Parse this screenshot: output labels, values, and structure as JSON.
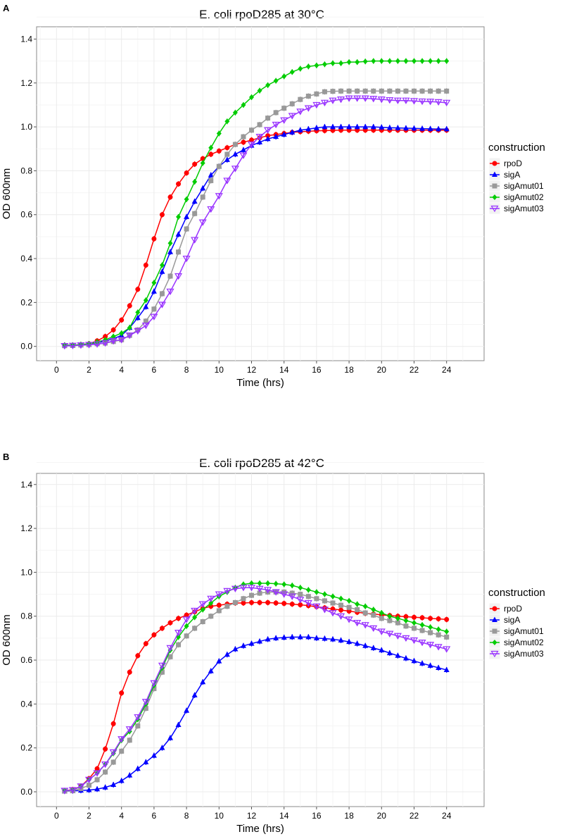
{
  "chart_data": [
    {
      "panel_label": "A",
      "type": "line",
      "title": "E. coli rpoD285 at 30°C",
      "xlabel": "Time (hrs)",
      "ylabel": "OD 600nm",
      "xlim": [
        -1,
        26
      ],
      "ylim": [
        -0.07,
        1.47
      ],
      "xticks": [
        "0",
        "2",
        "4",
        "6",
        "8",
        "10",
        "12",
        "14",
        "16",
        "18",
        "20",
        "22",
        "24"
      ],
      "yticks": [
        "0.0",
        "0.2",
        "0.4",
        "0.6",
        "0.8",
        "1.0",
        "1.2",
        "1.4"
      ],
      "grid": true,
      "legend_title": "construction",
      "legend_position": "right",
      "x_start": 0.5,
      "x_step": 0.5,
      "series": [
        {
          "name": "rpoD",
          "color": "#ff0000",
          "marker": "circle",
          "values": [
            0.005,
            0.005,
            0.008,
            0.012,
            0.025,
            0.045,
            0.075,
            0.12,
            0.185,
            0.26,
            0.37,
            0.49,
            0.6,
            0.68,
            0.74,
            0.79,
            0.83,
            0.855,
            0.875,
            0.89,
            0.905,
            0.92,
            0.93,
            0.94,
            0.95,
            0.96,
            0.965,
            0.97,
            0.975,
            0.978,
            0.98,
            0.982,
            0.983,
            0.984,
            0.985,
            0.985,
            0.985,
            0.985,
            0.985,
            0.985,
            0.985,
            0.985,
            0.985,
            0.985,
            0.985,
            0.985,
            0.985,
            0.985
          ]
        },
        {
          "name": "sigA",
          "color": "#0000ff",
          "marker": "triangle",
          "values": [
            0.005,
            0.005,
            0.007,
            0.01,
            0.015,
            0.025,
            0.035,
            0.05,
            0.085,
            0.13,
            0.18,
            0.25,
            0.34,
            0.43,
            0.51,
            0.59,
            0.66,
            0.72,
            0.78,
            0.82,
            0.85,
            0.875,
            0.895,
            0.915,
            0.93,
            0.945,
            0.955,
            0.965,
            0.975,
            0.985,
            0.99,
            0.995,
            1.0,
            1.0,
            1.0,
            1.0,
            1.0,
            1.0,
            1.0,
            0.998,
            0.996,
            0.995,
            0.994,
            0.993,
            0.992,
            0.991,
            0.99,
            0.99
          ]
        },
        {
          "name": "sigAmut01",
          "color": "#999999",
          "marker": "square",
          "values": [
            0.003,
            0.004,
            0.006,
            0.008,
            0.012,
            0.015,
            0.022,
            0.03,
            0.05,
            0.075,
            0.115,
            0.17,
            0.24,
            0.32,
            0.43,
            0.535,
            0.605,
            0.68,
            0.755,
            0.82,
            0.875,
            0.92,
            0.955,
            0.985,
            1.01,
            1.04,
            1.065,
            1.085,
            1.105,
            1.125,
            1.14,
            1.15,
            1.16,
            1.162,
            1.163,
            1.163,
            1.163,
            1.163,
            1.163,
            1.163,
            1.163,
            1.163,
            1.163,
            1.163,
            1.163,
            1.163,
            1.163,
            1.163
          ]
        },
        {
          "name": "sigAmut02",
          "color": "#00cc00",
          "marker": "diamond",
          "values": [
            0.005,
            0.005,
            0.008,
            0.012,
            0.02,
            0.03,
            0.045,
            0.06,
            0.085,
            0.155,
            0.21,
            0.29,
            0.37,
            0.47,
            0.59,
            0.67,
            0.75,
            0.835,
            0.905,
            0.97,
            1.025,
            1.065,
            1.1,
            1.135,
            1.165,
            1.19,
            1.21,
            1.23,
            1.25,
            1.265,
            1.275,
            1.28,
            1.285,
            1.29,
            1.29,
            1.295,
            1.295,
            1.298,
            1.3,
            1.3,
            1.3,
            1.3,
            1.3,
            1.3,
            1.3,
            1.3,
            1.3,
            1.3
          ]
        },
        {
          "name": "sigAmut03",
          "color": "#9933ff",
          "marker": "triangle-down-open",
          "values": [
            0.002,
            0.003,
            0.005,
            0.007,
            0.01,
            0.015,
            0.025,
            0.03,
            0.05,
            0.07,
            0.095,
            0.135,
            0.19,
            0.25,
            0.32,
            0.4,
            0.485,
            0.565,
            0.625,
            0.685,
            0.755,
            0.81,
            0.87,
            0.92,
            0.955,
            0.985,
            1.01,
            1.03,
            1.05,
            1.07,
            1.085,
            1.1,
            1.11,
            1.12,
            1.125,
            1.13,
            1.13,
            1.13,
            1.128,
            1.125,
            1.122,
            1.12,
            1.12,
            1.118,
            1.116,
            1.115,
            1.113,
            1.11
          ]
        }
      ]
    },
    {
      "panel_label": "B",
      "type": "line",
      "title": "E. coli rpoD285 at 42°C",
      "xlabel": "Time (hrs)",
      "ylabel": "OD 600nm",
      "xlim": [
        -1,
        26
      ],
      "ylim": [
        -0.07,
        1.47
      ],
      "xticks": [
        "0",
        "2",
        "4",
        "6",
        "8",
        "10",
        "12",
        "14",
        "16",
        "18",
        "20",
        "22",
        "24"
      ],
      "yticks": [
        "0.0",
        "0.2",
        "0.4",
        "0.6",
        "0.8",
        "1.0",
        "1.2",
        "1.4"
      ],
      "grid": true,
      "legend_title": "construction",
      "legend_position": "right",
      "x_start": 0.5,
      "x_step": 0.5,
      "series": [
        {
          "name": "rpoD",
          "color": "#ff0000",
          "marker": "circle",
          "values": [
            0.005,
            0.01,
            0.025,
            0.06,
            0.105,
            0.195,
            0.31,
            0.45,
            0.545,
            0.62,
            0.675,
            0.715,
            0.745,
            0.77,
            0.79,
            0.805,
            0.82,
            0.835,
            0.845,
            0.85,
            0.855,
            0.86,
            0.86,
            0.862,
            0.862,
            0.862,
            0.86,
            0.858,
            0.855,
            0.852,
            0.848,
            0.843,
            0.838,
            0.833,
            0.828,
            0.823,
            0.818,
            0.813,
            0.81,
            0.806,
            0.803,
            0.8,
            0.798,
            0.795,
            0.793,
            0.79,
            0.788,
            0.785
          ]
        },
        {
          "name": "sigA",
          "color": "#0000ff",
          "marker": "triangle",
          "values": [
            0.003,
            0.004,
            0.006,
            0.008,
            0.012,
            0.02,
            0.032,
            0.05,
            0.075,
            0.105,
            0.135,
            0.165,
            0.2,
            0.245,
            0.305,
            0.37,
            0.44,
            0.5,
            0.55,
            0.595,
            0.625,
            0.65,
            0.665,
            0.675,
            0.685,
            0.695,
            0.7,
            0.703,
            0.705,
            0.705,
            0.705,
            0.7,
            0.698,
            0.695,
            0.69,
            0.683,
            0.675,
            0.665,
            0.655,
            0.645,
            0.632,
            0.62,
            0.608,
            0.596,
            0.585,
            0.575,
            0.565,
            0.555
          ]
        },
        {
          "name": "sigAmut01",
          "color": "#999999",
          "marker": "square",
          "values": [
            0.003,
            0.005,
            0.015,
            0.03,
            0.055,
            0.09,
            0.135,
            0.185,
            0.235,
            0.3,
            0.38,
            0.47,
            0.545,
            0.615,
            0.67,
            0.71,
            0.745,
            0.775,
            0.8,
            0.825,
            0.845,
            0.862,
            0.88,
            0.895,
            0.905,
            0.91,
            0.91,
            0.91,
            0.905,
            0.9,
            0.89,
            0.88,
            0.87,
            0.86,
            0.85,
            0.84,
            0.83,
            0.815,
            0.805,
            0.79,
            0.78,
            0.77,
            0.755,
            0.745,
            0.735,
            0.725,
            0.715,
            0.705
          ]
        },
        {
          "name": "sigAmut02",
          "color": "#00cc00",
          "marker": "diamond",
          "values": [
            0.005,
            0.008,
            0.025,
            0.055,
            0.085,
            0.125,
            0.175,
            0.235,
            0.275,
            0.33,
            0.4,
            0.485,
            0.565,
            0.645,
            0.705,
            0.755,
            0.795,
            0.83,
            0.86,
            0.89,
            0.91,
            0.93,
            0.945,
            0.95,
            0.95,
            0.95,
            0.948,
            0.945,
            0.94,
            0.93,
            0.92,
            0.91,
            0.9,
            0.89,
            0.88,
            0.87,
            0.855,
            0.845,
            0.83,
            0.815,
            0.8,
            0.79,
            0.78,
            0.77,
            0.76,
            0.75,
            0.74,
            0.73
          ]
        },
        {
          "name": "sigAmut03",
          "color": "#9933ff",
          "marker": "triangle-down-open",
          "values": [
            0.005,
            0.008,
            0.025,
            0.055,
            0.085,
            0.125,
            0.18,
            0.24,
            0.285,
            0.34,
            0.41,
            0.495,
            0.575,
            0.655,
            0.725,
            0.785,
            0.825,
            0.855,
            0.88,
            0.9,
            0.915,
            0.925,
            0.93,
            0.93,
            0.925,
            0.92,
            0.91,
            0.9,
            0.89,
            0.875,
            0.86,
            0.845,
            0.83,
            0.815,
            0.8,
            0.785,
            0.77,
            0.76,
            0.745,
            0.73,
            0.72,
            0.71,
            0.7,
            0.69,
            0.68,
            0.67,
            0.66,
            0.65
          ]
        }
      ]
    }
  ]
}
